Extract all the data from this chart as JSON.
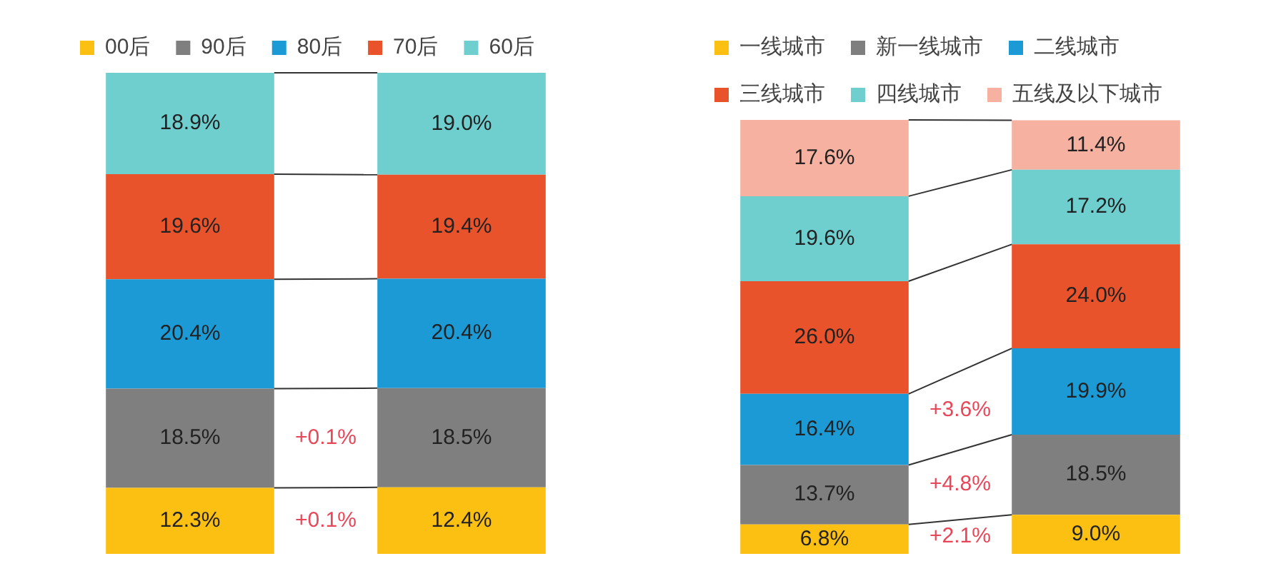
{
  "chart_data": [
    {
      "type": "bar",
      "stacked": true,
      "categories": [
        null,
        null
      ],
      "legend": "top",
      "grid": false,
      "tick_labels": false,
      "series": [
        {
          "name": "00后",
          "color": "#fbc012",
          "values": [
            12.3,
            12.4
          ],
          "value_labels": [
            "12.3%",
            "12.4%"
          ]
        },
        {
          "name": "90后",
          "color": "#7f7f7f",
          "values": [
            18.5,
            18.5
          ],
          "value_labels": [
            "18.5%",
            "18.5%"
          ]
        },
        {
          "name": "80后",
          "color": "#1b9ad6",
          "values": [
            20.4,
            20.4
          ],
          "value_labels": [
            "20.4%",
            "20.4%"
          ]
        },
        {
          "name": "70后",
          "color": "#e8532b",
          "values": [
            19.6,
            19.4
          ],
          "value_labels": [
            "19.6%",
            "19.4%"
          ]
        },
        {
          "name": "60后",
          "color": "#6fcfcf",
          "values": [
            18.9,
            19.0
          ],
          "value_labels": [
            "18.9%",
            "19.0%"
          ]
        }
      ],
      "annotations": [
        "+0.1%",
        "+0.1%"
      ]
    },
    {
      "type": "bar",
      "stacked": true,
      "categories": [
        null,
        null
      ],
      "legend": "top",
      "grid": false,
      "tick_labels": false,
      "series": [
        {
          "name": "一线城市",
          "color": "#fbc012",
          "values": [
            6.8,
            9.0
          ],
          "value_labels": [
            "6.8%",
            "9.0%"
          ]
        },
        {
          "name": "新一线城市",
          "color": "#7f7f7f",
          "values": [
            13.7,
            18.5
          ],
          "value_labels": [
            "13.7%",
            "18.5%"
          ]
        },
        {
          "name": "二线城市",
          "color": "#1b9ad6",
          "values": [
            16.4,
            19.9
          ],
          "value_labels": [
            "16.4%",
            "19.9%"
          ]
        },
        {
          "name": "三线城市",
          "color": "#e8532b",
          "values": [
            26.0,
            24.0
          ],
          "value_labels": [
            "26.0%",
            "24.0%"
          ]
        },
        {
          "name": "四线城市",
          "color": "#6fcfcf",
          "values": [
            19.6,
            17.2
          ],
          "value_labels": [
            "19.6%",
            "17.2%"
          ]
        },
        {
          "name": "五线及以下城市",
          "color": "#f7b1a0",
          "values": [
            17.6,
            11.4
          ],
          "value_labels": [
            "17.6%",
            "11.4%"
          ]
        }
      ],
      "annotations": [
        "+3.6%",
        "+4.8%",
        "+2.1%"
      ]
    }
  ]
}
